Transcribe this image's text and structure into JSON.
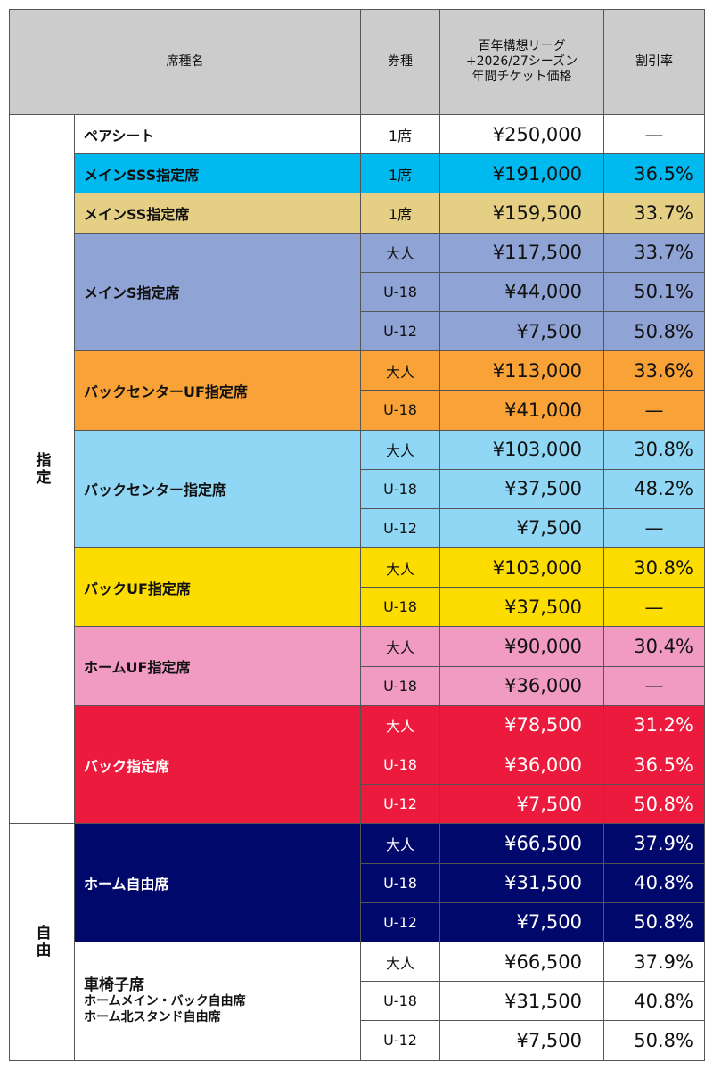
{
  "header": {
    "seat_name": "席種名",
    "ticket_type": "券種",
    "price_lines": [
      "百年構想リーグ",
      "+2026/27シーズン",
      "年間チケット価格"
    ],
    "discount": "割引率"
  },
  "categories": [
    {
      "label": "指定",
      "seats": [
        {
          "name": "ペアシート",
          "color": "#ffffff",
          "text_color": "#111111",
          "rows": [
            {
              "type": "1席",
              "price": "¥250,000",
              "rate": "—"
            }
          ]
        },
        {
          "name": "メインSSS指定席",
          "color": "#00b9ef",
          "text_color": "#111111",
          "rows": [
            {
              "type": "1席",
              "price": "¥191,000",
              "rate": "36.5%"
            }
          ]
        },
        {
          "name": "メインSS指定席",
          "color": "#e5cf85",
          "text_color": "#111111",
          "rows": [
            {
              "type": "1席",
              "price": "¥159,500",
              "rate": "33.7%"
            }
          ]
        },
        {
          "name": "メインS指定席",
          "color": "#8fa3d4",
          "text_color": "#111111",
          "rows": [
            {
              "type": "大人",
              "price": "¥117,500",
              "rate": "33.7%"
            },
            {
              "type": "U-18",
              "price": "¥44,000",
              "rate": "50.1%"
            },
            {
              "type": "U-12",
              "price": "¥7,500",
              "rate": "50.8%"
            }
          ]
        },
        {
          "name": "バックセンターUF指定席",
          "color": "#f9a237",
          "text_color": "#111111",
          "rows": [
            {
              "type": "大人",
              "price": "¥113,000",
              "rate": "33.6%"
            },
            {
              "type": "U-18",
              "price": "¥41,000",
              "rate": "—"
            }
          ]
        },
        {
          "name": "バックセンター指定席",
          "color": "#8fd7f5",
          "text_color": "#111111",
          "rows": [
            {
              "type": "大人",
              "price": "¥103,000",
              "rate": "30.8%"
            },
            {
              "type": "U-18",
              "price": "¥37,500",
              "rate": "48.2%"
            },
            {
              "type": "U-12",
              "price": "¥7,500",
              "rate": "—"
            }
          ]
        },
        {
          "name": "バックUF指定席",
          "color": "#fddd00",
          "text_color": "#111111",
          "rows": [
            {
              "type": "大人",
              "price": "¥103,000",
              "rate": "30.8%"
            },
            {
              "type": "U-18",
              "price": "¥37,500",
              "rate": "—"
            }
          ]
        },
        {
          "name": "ホームUF指定席",
          "color": "#f19bc3",
          "text_color": "#111111",
          "rows": [
            {
              "type": "大人",
              "price": "¥90,000",
              "rate": "30.4%"
            },
            {
              "type": "U-18",
              "price": "¥36,000",
              "rate": "—"
            }
          ]
        },
        {
          "name": "バック指定席",
          "color": "#ec1a3d",
          "text_color": "#ffffff",
          "rows": [
            {
              "type": "大人",
              "price": "¥78,500",
              "rate": "31.2%"
            },
            {
              "type": "U-18",
              "price": "¥36,000",
              "rate": "36.5%"
            },
            {
              "type": "U-12",
              "price": "¥7,500",
              "rate": "50.8%"
            }
          ]
        }
      ]
    },
    {
      "label": "自由",
      "seats": [
        {
          "name": "ホーム自由席",
          "color": "#00086b",
          "text_color": "#ffffff",
          "rows": [
            {
              "type": "大人",
              "price": "¥66,500",
              "rate": "37.9%"
            },
            {
              "type": "U-18",
              "price": "¥31,500",
              "rate": "40.8%"
            },
            {
              "type": "U-12",
              "price": "¥7,500",
              "rate": "50.8%"
            }
          ]
        },
        {
          "name_lines": [
            "車椅子席",
            "ホームメイン・バック自由席",
            "ホーム北スタンド自由席"
          ],
          "color": "#ffffff",
          "text_color": "#111111",
          "rows": [
            {
              "type": "大人",
              "price": "¥66,500",
              "rate": "37.9%"
            },
            {
              "type": "U-18",
              "price": "¥31,500",
              "rate": "40.8%"
            },
            {
              "type": "U-12",
              "price": "¥7,500",
              "rate": "50.8%"
            }
          ]
        }
      ]
    }
  ]
}
